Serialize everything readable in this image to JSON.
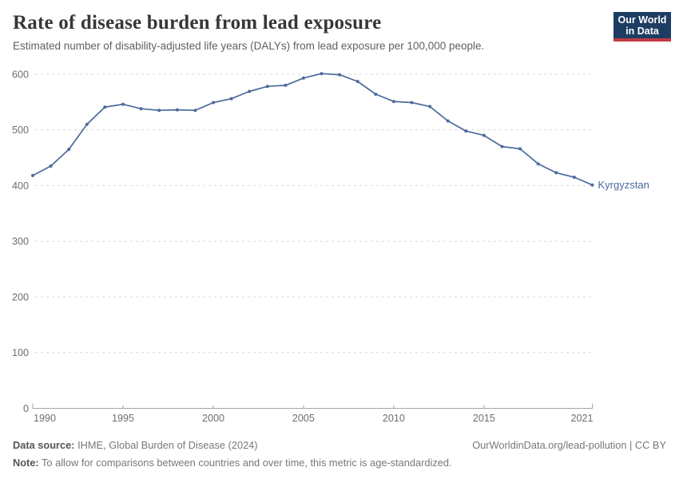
{
  "header": {
    "title": "Rate of disease burden from lead exposure",
    "subtitle": "Estimated number of disability-adjusted life years (DALYs) from lead exposure per 100,000 people."
  },
  "logo": {
    "line1": "Our World",
    "line2": "in Data",
    "bg_color": "#1d3d63",
    "accent_color": "#c13b43"
  },
  "chart_data": {
    "type": "line",
    "title": "Rate of disease burden from lead exposure",
    "xlabel": "",
    "ylabel": "",
    "xlim": [
      1990,
      2021
    ],
    "ylim": [
      0,
      600
    ],
    "x_ticks": [
      1990,
      1995,
      2000,
      2005,
      2010,
      2015,
      2021
    ],
    "y_ticks": [
      0,
      100,
      200,
      300,
      400,
      500,
      600
    ],
    "grid": "horizontal-dashed",
    "legend_position": "end-of-line-label",
    "series": [
      {
        "name": "Kyrgyzstan",
        "color": "#4c6a9c",
        "x": [
          1990,
          1991,
          1992,
          1993,
          1994,
          1995,
          1996,
          1997,
          1998,
          1999,
          2000,
          2001,
          2002,
          2003,
          2004,
          2005,
          2006,
          2007,
          2008,
          2009,
          2010,
          2011,
          2012,
          2013,
          2014,
          2015,
          2016,
          2017,
          2018,
          2019,
          2020,
          2021
        ],
        "values": [
          418,
          435,
          465,
          510,
          541,
          546,
          538,
          535,
          536,
          535,
          549,
          556,
          569,
          578,
          580,
          593,
          601,
          599,
          587,
          564,
          551,
          549,
          542,
          516,
          498,
          490,
          470,
          466,
          439,
          423,
          415,
          401
        ]
      }
    ]
  },
  "footer": {
    "source_label": "Data source:",
    "source_text": " IHME, Global Burden of Disease (2024)",
    "link_text": "OurWorldinData.org/lead-pollution | CC BY",
    "note_label": "Note:",
    "note_text": " To allow for comparisons between countries and over time, this metric is age-standardized."
  },
  "colors": {
    "line": "#4c6a9c",
    "gridline": "#d9d9d9",
    "axis": "#a6a6a6",
    "tick_label": "#6e6e6e",
    "title": "#373737",
    "subtitle": "#606060",
    "footer_text": "#787878",
    "footer_label": "#565656"
  }
}
